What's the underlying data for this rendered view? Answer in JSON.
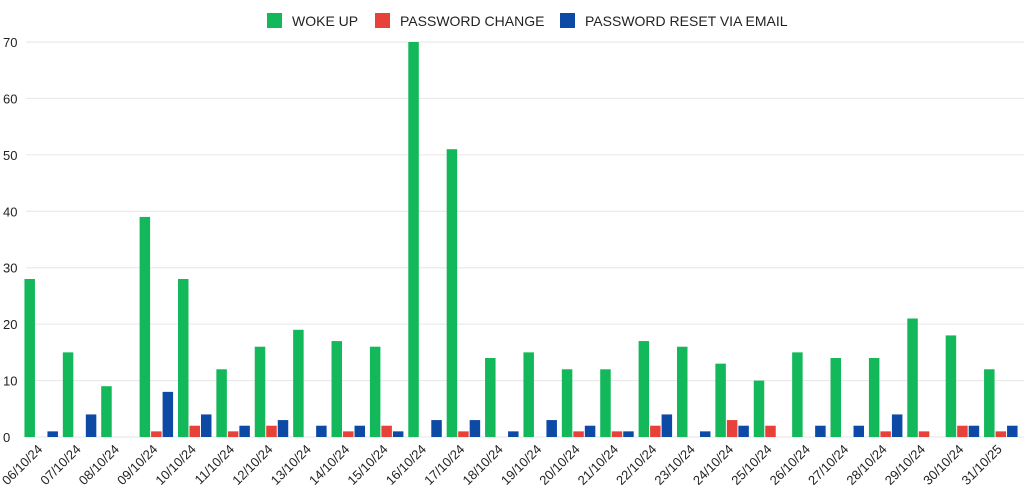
{
  "chart_data": {
    "type": "bar",
    "title": "",
    "xlabel": "",
    "ylabel": "",
    "ylim": [
      0,
      70
    ],
    "yticks": [
      0,
      10,
      20,
      30,
      40,
      50,
      60,
      70
    ],
    "grid": true,
    "legend_position": "top",
    "categories": [
      "06/10/24",
      "07/10/24",
      "08/10/24",
      "09/10/24",
      "10/10/24",
      "11/10/24",
      "12/10/24",
      "13/10/24",
      "14/10/24",
      "15/10/24",
      "16/10/24",
      "17/10/24",
      "18/10/24",
      "19/10/24",
      "20/10/24",
      "21/10/24",
      "22/10/24",
      "23/10/24",
      "24/10/24",
      "25/10/24",
      "26/10/24",
      "27/10/24",
      "28/10/24",
      "29/10/24",
      "30/10/24",
      "31/10/25"
    ],
    "series": [
      {
        "name": "WOKE UP",
        "color": "#12b85a",
        "values": [
          28,
          15,
          9,
          39,
          28,
          12,
          16,
          19,
          17,
          16,
          70,
          51,
          14,
          15,
          12,
          12,
          17,
          16,
          13,
          10,
          15,
          14,
          14,
          21,
          18,
          12
        ]
      },
      {
        "name": "PASSWORD CHANGE",
        "color": "#e8413a",
        "values": [
          0,
          0,
          0,
          1,
          2,
          1,
          2,
          0,
          1,
          2,
          0,
          1,
          0,
          0,
          1,
          1,
          2,
          0,
          3,
          2,
          0,
          0,
          1,
          1,
          2,
          1
        ]
      },
      {
        "name": "PASSWORD RESET VIA EMAIL",
        "color": "#0d4aa6",
        "values": [
          1,
          4,
          0,
          8,
          4,
          2,
          3,
          2,
          2,
          1,
          3,
          3,
          1,
          3,
          2,
          1,
          4,
          1,
          2,
          0,
          2,
          2,
          4,
          0,
          2,
          2
        ]
      }
    ]
  }
}
